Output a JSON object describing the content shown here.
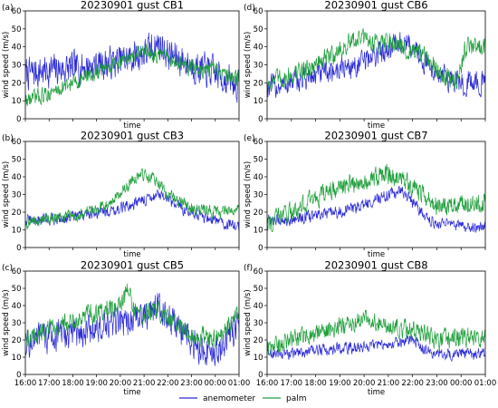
{
  "figure": {
    "legend": [
      {
        "name": "anemometer",
        "color": "#2b2bd6"
      },
      {
        "name": "palm",
        "color": "#1e9e3a"
      }
    ],
    "legend_position": "bottom-center"
  },
  "chart_data": [
    {
      "type": "line",
      "letter": "(a)",
      "title": "20230901 gust CB1",
      "xlabel": "time",
      "ylabel": "wind speed (m/s)",
      "xlim": [
        "16:00",
        "01:00"
      ],
      "ylim": [
        0,
        60
      ],
      "yticks": [
        0,
        10,
        20,
        30,
        40,
        50,
        60
      ],
      "xticks": [
        "16:00",
        "17:00",
        "18:00",
        "19:00",
        "20:00",
        "21:00",
        "22:00",
        "23:00",
        "00:00",
        "01:00"
      ],
      "show_xtick_labels": false,
      "series": [
        {
          "name": "anemometer",
          "color": "#2b2bd6",
          "profile": [
            [
              0,
              25
            ],
            [
              1,
              27
            ],
            [
              2,
              28
            ],
            [
              3,
              30
            ],
            [
              4,
              32
            ],
            [
              5,
              36
            ],
            [
              5.6,
              42
            ],
            [
              6,
              36
            ],
            [
              7,
              30
            ],
            [
              8,
              25
            ],
            [
              9,
              18
            ]
          ],
          "noise": 8
        },
        {
          "name": "palm",
          "color": "#1e9e3a",
          "profile": [
            [
              0,
              10
            ],
            [
              1,
              14
            ],
            [
              2,
              20
            ],
            [
              3,
              26
            ],
            [
              4,
              32
            ],
            [
              5,
              37
            ],
            [
              6,
              34
            ],
            [
              7,
              28
            ],
            [
              8,
              26
            ],
            [
              9,
              22
            ]
          ],
          "noise": 4
        }
      ]
    },
    {
      "type": "line",
      "letter": "(d)",
      "title": "20230901 gust CB6",
      "xlabel": "time",
      "ylabel": "wind speed (m/s)",
      "xlim": [
        "16:00",
        "01:00"
      ],
      "ylim": [
        0,
        60
      ],
      "yticks": [
        0,
        10,
        20,
        30,
        40,
        50,
        60
      ],
      "xticks": [
        "16:00",
        "17:00",
        "18:00",
        "19:00",
        "20:00",
        "21:00",
        "22:00",
        "23:00",
        "00:00",
        "01:00"
      ],
      "show_xtick_labels": false,
      "series": [
        {
          "name": "anemometer",
          "color": "#2b2bd6",
          "profile": [
            [
              0,
              17
            ],
            [
              1,
              20
            ],
            [
              2,
              24
            ],
            [
              3,
              28
            ],
            [
              3.8,
              30
            ],
            [
              4.5,
              36
            ],
            [
              5,
              40
            ],
            [
              5.8,
              42
            ],
            [
              6.5,
              32
            ],
            [
              7,
              25
            ],
            [
              8,
              20
            ],
            [
              9,
              20
            ]
          ],
          "noise": 6
        },
        {
          "name": "palm",
          "color": "#1e9e3a",
          "profile": [
            [
              0,
              20
            ],
            [
              1,
              24
            ],
            [
              2,
              30
            ],
            [
              3,
              38
            ],
            [
              3.8,
              45
            ],
            [
              4.5,
              42
            ],
            [
              5,
              44
            ],
            [
              5.8,
              38
            ],
            [
              6.5,
              34
            ],
            [
              7,
              28
            ],
            [
              7.8,
              20
            ],
            [
              8.2,
              40
            ],
            [
              9,
              40
            ]
          ],
          "noise": 5
        }
      ]
    },
    {
      "type": "line",
      "letter": "(b)",
      "title": "20230901 gust CB3",
      "xlabel": "time",
      "ylabel": "wind speed (m/s)",
      "xlim": [
        "16:00",
        "01:00"
      ],
      "ylim": [
        0,
        60
      ],
      "yticks": [
        0,
        10,
        20,
        30,
        40,
        50,
        60
      ],
      "xticks": [
        "16:00",
        "17:00",
        "18:00",
        "19:00",
        "20:00",
        "21:00",
        "22:00",
        "23:00",
        "00:00",
        "01:00"
      ],
      "show_xtick_labels": false,
      "series": [
        {
          "name": "anemometer",
          "color": "#2b2bd6",
          "profile": [
            [
              0,
              15
            ],
            [
              1,
              16
            ],
            [
              2,
              17
            ],
            [
              3,
              20
            ],
            [
              4,
              22
            ],
            [
              5,
              27
            ],
            [
              5.6,
              30
            ],
            [
              6,
              26
            ],
            [
              7,
              20
            ],
            [
              8,
              15
            ],
            [
              9,
              12
            ]
          ],
          "noise": 3
        },
        {
          "name": "palm",
          "color": "#1e9e3a",
          "profile": [
            [
              0,
              14
            ],
            [
              1,
              16
            ],
            [
              2,
              18
            ],
            [
              3,
              22
            ],
            [
              4,
              30
            ],
            [
              4.8,
              42
            ],
            [
              5.5,
              38
            ],
            [
              6,
              30
            ],
            [
              7,
              22
            ],
            [
              8,
              20
            ],
            [
              9,
              22
            ]
          ],
          "noise": 3
        }
      ]
    },
    {
      "type": "line",
      "letter": "(e)",
      "title": "20230901 gust CB7",
      "xlabel": "time",
      "ylabel": "wind speed (m/s)",
      "xlim": [
        "16:00",
        "01:00"
      ],
      "ylim": [
        0,
        60
      ],
      "yticks": [
        0,
        10,
        20,
        30,
        40,
        50,
        60
      ],
      "xticks": [
        "16:00",
        "17:00",
        "18:00",
        "19:00",
        "20:00",
        "21:00",
        "22:00",
        "23:00",
        "00:00",
        "01:00"
      ],
      "show_xtick_labels": false,
      "series": [
        {
          "name": "anemometer",
          "color": "#2b2bd6",
          "profile": [
            [
              0,
              15
            ],
            [
              1,
              16
            ],
            [
              2,
              18
            ],
            [
              3,
              20
            ],
            [
              4,
              24
            ],
            [
              5,
              30
            ],
            [
              5.6,
              32
            ],
            [
              6,
              26
            ],
            [
              6.5,
              18
            ],
            [
              7,
              14
            ],
            [
              8,
              12
            ],
            [
              9,
              12
            ]
          ],
          "noise": 3
        },
        {
          "name": "palm",
          "color": "#1e9e3a",
          "profile": [
            [
              0,
              15
            ],
            [
              1,
              20
            ],
            [
              2,
              28
            ],
            [
              3,
              34
            ],
            [
              4,
              38
            ],
            [
              4.8,
              42
            ],
            [
              5.5,
              38
            ],
            [
              6,
              34
            ],
            [
              7,
              24
            ],
            [
              8,
              24
            ],
            [
              9,
              26
            ]
          ],
          "noise": 5
        }
      ]
    },
    {
      "type": "line",
      "letter": "(c)",
      "title": "20230901 gust CB5",
      "xlabel": "time",
      "ylabel": "wind speed (m/s)",
      "xlim": [
        "16:00",
        "01:00"
      ],
      "ylim": [
        0,
        60
      ],
      "yticks": [
        0,
        10,
        20,
        30,
        40,
        50,
        60
      ],
      "xticks": [
        "16:00",
        "17:00",
        "18:00",
        "19:00",
        "20:00",
        "21:00",
        "22:00",
        "23:00",
        "00:00",
        "01:00"
      ],
      "show_xtick_labels": true,
      "series": [
        {
          "name": "anemometer",
          "color": "#2b2bd6",
          "profile": [
            [
              0,
              18
            ],
            [
              1,
              22
            ],
            [
              2,
              24
            ],
            [
              3,
              26
            ],
            [
              4,
              30
            ],
            [
              5,
              34
            ],
            [
              5.5,
              40
            ],
            [
              6,
              34
            ],
            [
              7,
              18
            ],
            [
              8,
              14
            ],
            [
              9,
              28
            ]
          ],
          "noise": 8
        },
        {
          "name": "palm",
          "color": "#1e9e3a",
          "profile": [
            [
              0,
              20
            ],
            [
              1,
              26
            ],
            [
              2,
              32
            ],
            [
              3,
              36
            ],
            [
              4,
              40
            ],
            [
              4.3,
              48
            ],
            [
              4.8,
              34
            ],
            [
              5.5,
              38
            ],
            [
              6,
              32
            ],
            [
              7,
              24
            ],
            [
              8,
              20
            ],
            [
              9,
              36
            ]
          ],
          "noise": 5
        }
      ]
    },
    {
      "type": "line",
      "letter": "(f)",
      "title": "20230901 gust CB8",
      "xlabel": "time",
      "ylabel": "wind speed (m/s)",
      "xlim": [
        "16:00",
        "01:00"
      ],
      "ylim": [
        0,
        60
      ],
      "yticks": [
        0,
        10,
        20,
        30,
        40,
        50,
        60
      ],
      "xticks": [
        "16:00",
        "17:00",
        "18:00",
        "19:00",
        "20:00",
        "21:00",
        "22:00",
        "23:00",
        "00:00",
        "01:00"
      ],
      "show_xtick_labels": true,
      "series": [
        {
          "name": "anemometer",
          "color": "#2b2bd6",
          "profile": [
            [
              0,
              12
            ],
            [
              1,
              12
            ],
            [
              2,
              14
            ],
            [
              3,
              15
            ],
            [
              4,
              16
            ],
            [
              5,
              18
            ],
            [
              6,
              20
            ],
            [
              6.5,
              14
            ],
            [
              7,
              12
            ],
            [
              8,
              12
            ],
            [
              9,
              12
            ]
          ],
          "noise": 3
        },
        {
          "name": "palm",
          "color": "#1e9e3a",
          "profile": [
            [
              0,
              14
            ],
            [
              1,
              20
            ],
            [
              2,
              24
            ],
            [
              3,
              28
            ],
            [
              4,
              32
            ],
            [
              5,
              28
            ],
            [
              6,
              26
            ],
            [
              6.5,
              24
            ],
            [
              7,
              20
            ],
            [
              8,
              22
            ],
            [
              9,
              22
            ]
          ],
          "noise": 5
        }
      ]
    }
  ]
}
